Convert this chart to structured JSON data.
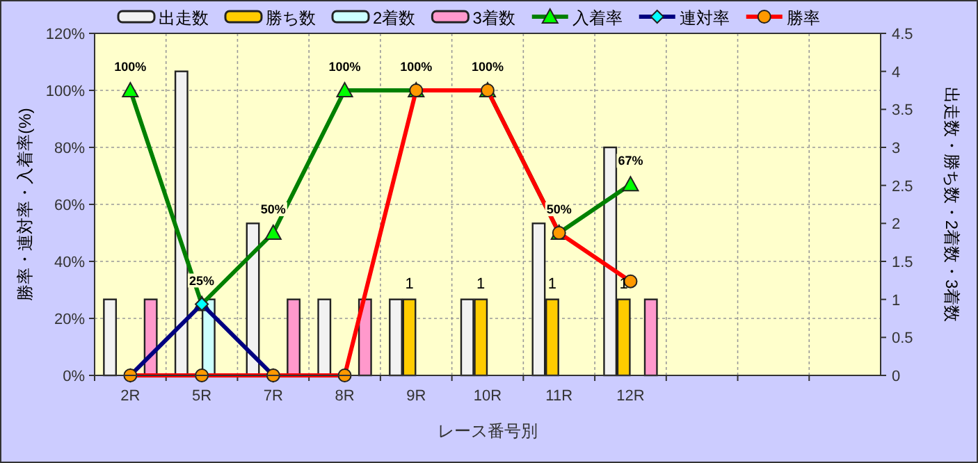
{
  "chart_data": {
    "type": "bar",
    "xlabel": "レース番号別",
    "ylabel": "勝率・連対率・入着率(%)",
    "y2label": "出走数・勝ち数・2着数・3着数",
    "categories": [
      "2R",
      "5R",
      "7R",
      "8R",
      "9R",
      "10R",
      "11R",
      "12R",
      null,
      null,
      null
    ],
    "ylim": [
      0,
      120
    ],
    "yticks": [
      {
        "value": 0,
        "label": "0%"
      },
      {
        "value": 20,
        "label": "20%"
      },
      {
        "value": 40,
        "label": "40%"
      },
      {
        "value": 60,
        "label": "60%"
      },
      {
        "value": 80,
        "label": "80%"
      },
      {
        "value": 100,
        "label": "100%"
      },
      {
        "value": 120,
        "label": "120%"
      }
    ],
    "y2lim": [
      0,
      4.5
    ],
    "y2ticks": [
      0,
      0.5,
      1,
      1.5,
      2,
      2.5,
      3,
      3.5,
      4,
      4.5
    ],
    "grid": true,
    "legend": "top",
    "series": [
      {
        "name": "出走数",
        "axis": "y2",
        "color": "#f2f2f2",
        "values": [
          1,
          4,
          2,
          1,
          1,
          1,
          2,
          3,
          null,
          null,
          null
        ]
      },
      {
        "name": "勝ち数",
        "axis": "y2",
        "color": "#ffcc00",
        "values": [
          0,
          0,
          0,
          0,
          1,
          1,
          1,
          1,
          null,
          null,
          null
        ],
        "value_labels": [
          null,
          null,
          null,
          null,
          "1",
          "1",
          "1",
          "1",
          null,
          null,
          null
        ]
      },
      {
        "name": "2着数",
        "axis": "y2",
        "color": "#ccffff",
        "values": [
          0,
          1,
          0,
          0,
          0,
          0,
          0,
          0,
          null,
          null,
          null
        ]
      },
      {
        "name": "3着数",
        "axis": "y2",
        "color": "#ff99cc",
        "values": [
          1,
          0,
          1,
          1,
          0,
          0,
          0,
          1,
          null,
          null,
          null
        ]
      },
      {
        "name": "入着率",
        "type": "line",
        "axis": "y",
        "color": "#008000",
        "marker": "triangle",
        "colors": [
          "#00ff00",
          "#00ff00",
          "#00ff00",
          "#00ff00",
          "#00ff00",
          "#00ff00",
          "#00ff00",
          "#00ff00",
          null,
          null,
          null
        ],
        "values": [
          100,
          25,
          50,
          100,
          100,
          100,
          50,
          67,
          null,
          null,
          null
        ],
        "value_labels": [
          "100%",
          "25%",
          "50%",
          "100%",
          "100%",
          "100%",
          "50%",
          "67%",
          null,
          null,
          null
        ]
      },
      {
        "name": "連対率",
        "type": "line",
        "axis": "y",
        "color": "#000080",
        "marker": "diamond",
        "colors": [
          "#00ffff",
          "#00ffff",
          "#00ffff",
          null,
          null,
          null,
          null,
          null,
          null,
          null,
          null
        ],
        "values": [
          0,
          25,
          0,
          null,
          null,
          null,
          null,
          null,
          null,
          null,
          null
        ]
      },
      {
        "name": "勝率",
        "type": "line",
        "axis": "y",
        "color": "#ff0000",
        "marker": "circle",
        "colors": [
          "#ff9900",
          "#ff9900",
          "#ff9900",
          "#ff9900",
          "#ff9900",
          "#ff9900",
          "#ff9900",
          "#ff9900",
          null,
          null,
          null
        ],
        "values": [
          0,
          0,
          0,
          0,
          100,
          100,
          50,
          33,
          null,
          null,
          null
        ]
      }
    ]
  }
}
